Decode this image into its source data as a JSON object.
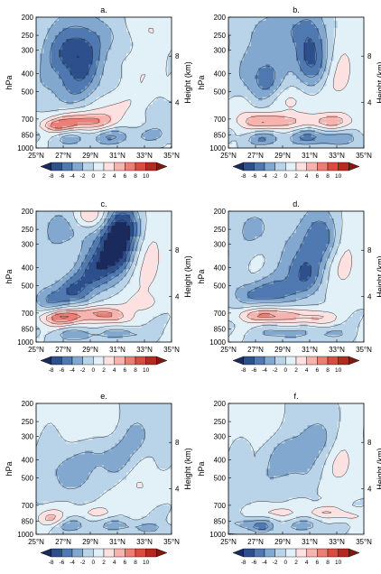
{
  "figure": {
    "ylabel_left": "hPa",
    "ylabel_right": "Height (km)"
  },
  "colorbar": {
    "ticks": [
      "-8",
      "-6",
      "-4",
      "-2",
      "0",
      "2",
      "4",
      "6",
      "8",
      "10"
    ],
    "colors": [
      "#1a2a5c",
      "#2d4f8c",
      "#4f79b0",
      "#82a8cf",
      "#b9d3e8",
      "#e2f0f8",
      "#fde0e0",
      "#f7b3ad",
      "#ec7f75",
      "#d94c40",
      "#b52a20",
      "#7d1a12"
    ]
  },
  "chart_data": [
    {
      "panel": "a.",
      "type": "heatmap",
      "x_ticks": [
        "25°N",
        "27°N",
        "29°N",
        "31°N",
        "33°N",
        "35°N"
      ],
      "y_ticks": [
        "200",
        "250",
        "300",
        "400",
        "500",
        "700",
        "850",
        "1000"
      ],
      "height_ticks": [
        "8",
        "4"
      ],
      "xlim": [
        25,
        35
      ],
      "ylim": [
        1000,
        200
      ],
      "levels": [
        -8,
        -6,
        -4,
        -2,
        0,
        2,
        4,
        6,
        8,
        10
      ],
      "features": [
        {
          "lat": 28.0,
          "p": 410,
          "amp": -5.5,
          "sx": 1.6,
          "sy": 140
        },
        {
          "lat": 27.8,
          "p": 300,
          "amp": -4.0,
          "sx": 1.3,
          "sy": 60
        },
        {
          "lat": 28.5,
          "p": 720,
          "amp": 7.0,
          "sx": 1.6,
          "sy": 55
        },
        {
          "lat": 26.5,
          "p": 760,
          "amp": 5.0,
          "sx": 0.9,
          "sy": 40
        },
        {
          "lat": 30.5,
          "p": 600,
          "amp": 2.5,
          "sx": 1.8,
          "sy": 80
        },
        {
          "lat": 32.5,
          "p": 400,
          "amp": 1.5,
          "sx": 1.5,
          "sy": 100
        },
        {
          "lat": 33.0,
          "p": 230,
          "amp": 2.0,
          "sx": 1.4,
          "sy": 40
        },
        {
          "lat": 31.0,
          "p": 250,
          "amp": -2.0,
          "sx": 1.2,
          "sy": 40
        },
        {
          "lat": 30.5,
          "p": 880,
          "amp": -4.0,
          "sx": 1.0,
          "sy": 60
        },
        {
          "lat": 27.5,
          "p": 900,
          "amp": -3.0,
          "sx": 0.8,
          "sy": 50
        },
        {
          "lat": 33.5,
          "p": 850,
          "amp": -2.5,
          "sx": 1.0,
          "sy": 60
        },
        {
          "lat": 34.0,
          "p": 650,
          "amp": -2.0,
          "sx": 0.8,
          "sy": 60
        }
      ]
    },
    {
      "panel": "b.",
      "type": "heatmap",
      "x_ticks": [
        "25°N",
        "27°N",
        "29°N",
        "31°N",
        "33°N",
        "35°N"
      ],
      "y_ticks": [
        "200",
        "250",
        "300",
        "400",
        "500",
        "700",
        "850",
        "1000"
      ],
      "height_ticks": [
        "8",
        "4"
      ],
      "xlim": [
        25,
        35
      ],
      "ylim": [
        1000,
        200
      ],
      "levels": [
        -8,
        -6,
        -4,
        -2,
        0,
        2,
        4,
        6,
        8,
        10
      ],
      "features": [
        {
          "lat": 31.0,
          "p": 320,
          "amp": -7.0,
          "sx": 0.9,
          "sy": 90
        },
        {
          "lat": 27.5,
          "p": 420,
          "amp": -5.0,
          "sx": 1.1,
          "sy": 110
        },
        {
          "lat": 29.0,
          "p": 230,
          "amp": -2.5,
          "sx": 1.5,
          "sy": 35
        },
        {
          "lat": 28.0,
          "p": 720,
          "amp": 6.5,
          "sx": 1.6,
          "sy": 50
        },
        {
          "lat": 32.5,
          "p": 720,
          "amp": 5.0,
          "sx": 1.3,
          "sy": 50
        },
        {
          "lat": 33.5,
          "p": 420,
          "amp": 2.5,
          "sx": 1.0,
          "sy": 120
        },
        {
          "lat": 29.5,
          "p": 560,
          "amp": 2.5,
          "sx": 1.2,
          "sy": 60
        },
        {
          "lat": 26.0,
          "p": 600,
          "amp": 1.5,
          "sx": 0.7,
          "sy": 70
        },
        {
          "lat": 27.5,
          "p": 900,
          "amp": -4.0,
          "sx": 0.9,
          "sy": 50
        },
        {
          "lat": 31.0,
          "p": 880,
          "amp": -4.5,
          "sx": 1.1,
          "sy": 60
        },
        {
          "lat": 33.5,
          "p": 900,
          "amp": -3.0,
          "sx": 0.9,
          "sy": 50
        }
      ]
    },
    {
      "panel": "c.",
      "type": "heatmap",
      "x_ticks": [
        "25°N",
        "27°N",
        "29°N",
        "31°N",
        "33°N",
        "35°N"
      ],
      "y_ticks": [
        "200",
        "250",
        "300",
        "400",
        "500",
        "700",
        "850",
        "1000"
      ],
      "height_ticks": [
        "8",
        "4"
      ],
      "xlim": [
        25,
        35
      ],
      "ylim": [
        1000,
        200
      ],
      "levels": [
        -8,
        -6,
        -4,
        -2,
        0,
        2,
        4,
        6,
        8,
        10
      ],
      "features": [
        {
          "lat": 30.8,
          "p": 320,
          "amp": -9.5,
          "sx": 0.9,
          "sy": 70
        },
        {
          "lat": 31.6,
          "p": 240,
          "amp": -6.0,
          "sx": 0.8,
          "sy": 45
        },
        {
          "lat": 29.5,
          "p": 420,
          "amp": -6.5,
          "sx": 0.9,
          "sy": 70
        },
        {
          "lat": 27.8,
          "p": 530,
          "amp": -6.0,
          "sx": 1.0,
          "sy": 70
        },
        {
          "lat": 26.0,
          "p": 600,
          "amp": -4.0,
          "sx": 0.8,
          "sy": 60
        },
        {
          "lat": 27.0,
          "p": 250,
          "amp": -3.0,
          "sx": 1.2,
          "sy": 50
        },
        {
          "lat": 27.0,
          "p": 740,
          "amp": 8.0,
          "sx": 1.2,
          "sy": 50
        },
        {
          "lat": 29.5,
          "p": 700,
          "amp": 5.0,
          "sx": 1.1,
          "sy": 45
        },
        {
          "lat": 31.0,
          "p": 740,
          "amp": 4.0,
          "sx": 0.8,
          "sy": 50
        },
        {
          "lat": 29.0,
          "p": 210,
          "amp": 4.5,
          "sx": 0.9,
          "sy": 25
        },
        {
          "lat": 33.5,
          "p": 400,
          "amp": 2.5,
          "sx": 1.0,
          "sy": 140
        },
        {
          "lat": 32.5,
          "p": 620,
          "amp": 2.0,
          "sx": 1.3,
          "sy": 60
        },
        {
          "lat": 28.0,
          "p": 920,
          "amp": -3.5,
          "sx": 1.1,
          "sy": 50
        },
        {
          "lat": 31.5,
          "p": 900,
          "amp": -3.0,
          "sx": 1.2,
          "sy": 50
        }
      ]
    },
    {
      "panel": "d.",
      "type": "heatmap",
      "x_ticks": [
        "25°N",
        "27°N",
        "29°N",
        "31°N",
        "33°N",
        "35°N"
      ],
      "y_ticks": [
        "200",
        "250",
        "300",
        "400",
        "500",
        "700",
        "850",
        "1000"
      ],
      "height_ticks": [
        "8",
        "4"
      ],
      "xlim": [
        25,
        35
      ],
      "ylim": [
        1000,
        200
      ],
      "levels": [
        -8,
        -6,
        -4,
        -2,
        0,
        2,
        4,
        6,
        8,
        10
      ],
      "features": [
        {
          "lat": 30.5,
          "p": 420,
          "amp": -6.5,
          "sx": 1.0,
          "sy": 90
        },
        {
          "lat": 31.8,
          "p": 270,
          "amp": -5.0,
          "sx": 1.0,
          "sy": 60
        },
        {
          "lat": 28.5,
          "p": 540,
          "amp": -5.0,
          "sx": 1.1,
          "sy": 60
        },
        {
          "lat": 26.5,
          "p": 560,
          "amp": -3.5,
          "sx": 0.9,
          "sy": 60
        },
        {
          "lat": 27.0,
          "p": 250,
          "amp": -2.5,
          "sx": 1.2,
          "sy": 50
        },
        {
          "lat": 28.0,
          "p": 720,
          "amp": 7.0,
          "sx": 1.5,
          "sy": 45
        },
        {
          "lat": 31.5,
          "p": 740,
          "amp": 4.5,
          "sx": 1.0,
          "sy": 45
        },
        {
          "lat": 33.8,
          "p": 400,
          "amp": 2.5,
          "sx": 0.9,
          "sy": 140
        },
        {
          "lat": 29.0,
          "p": 900,
          "amp": -3.0,
          "sx": 1.3,
          "sy": 50
        },
        {
          "lat": 32.5,
          "p": 900,
          "amp": -2.5,
          "sx": 1.0,
          "sy": 50
        }
      ]
    },
    {
      "panel": "e.",
      "type": "heatmap",
      "x_ticks": [
        "25°N",
        "27°N",
        "29°N",
        "31°N",
        "33°N",
        "35°N"
      ],
      "y_ticks": [
        "200",
        "250",
        "300",
        "400",
        "500",
        "700",
        "850",
        "1000"
      ],
      "height_ticks": [
        "8",
        "4"
      ],
      "xlim": [
        25,
        35
      ],
      "ylim": [
        1000,
        200
      ],
      "levels": [
        -8,
        -6,
        -4,
        -2,
        0,
        2,
        4,
        6,
        8,
        10
      ],
      "features": [
        {
          "lat": 27.5,
          "p": 470,
          "amp": -3.5,
          "sx": 1.2,
          "sy": 90
        },
        {
          "lat": 30.5,
          "p": 400,
          "amp": -3.0,
          "sx": 1.0,
          "sy": 70
        },
        {
          "lat": 32.5,
          "p": 300,
          "amp": -2.5,
          "sx": 1.0,
          "sy": 60
        },
        {
          "lat": 29.0,
          "p": 260,
          "amp": 2.0,
          "sx": 1.5,
          "sy": 45
        },
        {
          "lat": 33.0,
          "p": 560,
          "amp": 2.0,
          "sx": 1.4,
          "sy": 80
        },
        {
          "lat": 26.0,
          "p": 820,
          "amp": 4.5,
          "sx": 0.8,
          "sy": 60
        },
        {
          "lat": 29.5,
          "p": 760,
          "amp": 2.5,
          "sx": 1.2,
          "sy": 40
        },
        {
          "lat": 27.5,
          "p": 900,
          "amp": -3.5,
          "sx": 0.9,
          "sy": 50
        },
        {
          "lat": 31.0,
          "p": 900,
          "amp": -3.0,
          "sx": 1.0,
          "sy": 45
        },
        {
          "lat": 33.5,
          "p": 930,
          "amp": -2.5,
          "sx": 0.9,
          "sy": 45
        }
      ]
    },
    {
      "panel": "f.",
      "type": "heatmap",
      "x_ticks": [
        "25°N",
        "27°N",
        "29°N",
        "31°N",
        "33°N",
        "35°N"
      ],
      "y_ticks": [
        "200",
        "250",
        "300",
        "400",
        "500",
        "700",
        "850",
        "1000"
      ],
      "height_ticks": [
        "8",
        "4"
      ],
      "xlim": [
        25,
        35
      ],
      "ylim": [
        1000,
        200
      ],
      "levels": [
        -8,
        -6,
        -4,
        -2,
        0,
        2,
        4,
        6,
        8,
        10
      ],
      "features": [
        {
          "lat": 29.5,
          "p": 420,
          "amp": -3.0,
          "sx": 1.4,
          "sy": 90
        },
        {
          "lat": 31.5,
          "p": 300,
          "amp": -2.5,
          "sx": 1.2,
          "sy": 60
        },
        {
          "lat": 26.5,
          "p": 560,
          "amp": -2.0,
          "sx": 1.0,
          "sy": 60
        },
        {
          "lat": 33.5,
          "p": 430,
          "amp": 2.5,
          "sx": 1.0,
          "sy": 110
        },
        {
          "lat": 27.5,
          "p": 260,
          "amp": 1.5,
          "sx": 1.4,
          "sy": 40
        },
        {
          "lat": 32.0,
          "p": 760,
          "amp": 4.0,
          "sx": 0.9,
          "sy": 40
        },
        {
          "lat": 28.5,
          "p": 760,
          "amp": 3.0,
          "sx": 1.0,
          "sy": 40
        },
        {
          "lat": 34.0,
          "p": 800,
          "amp": 3.0,
          "sx": 0.7,
          "sy": 40
        },
        {
          "lat": 27.5,
          "p": 910,
          "amp": -5.0,
          "sx": 0.6,
          "sy": 45
        },
        {
          "lat": 26.0,
          "p": 880,
          "amp": -3.0,
          "sx": 0.7,
          "sy": 45
        },
        {
          "lat": 30.5,
          "p": 900,
          "amp": -3.0,
          "sx": 1.0,
          "sy": 45
        }
      ]
    }
  ]
}
